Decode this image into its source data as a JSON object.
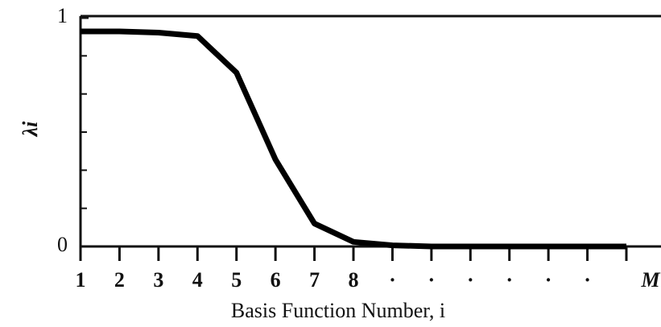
{
  "chart_data": {
    "type": "line",
    "x_label": "Basis Function Number, i",
    "y_label": "λi",
    "x": [
      1,
      2,
      3,
      4,
      5,
      6,
      7,
      8,
      9,
      10,
      11,
      12,
      13,
      14,
      15
    ],
    "series": [
      {
        "name": "λi",
        "color": "#000000",
        "values": [
          0.94,
          0.94,
          0.935,
          0.92,
          0.76,
          0.38,
          0.1,
          0.02,
          0.005,
          0,
          0,
          0,
          0,
          0,
          0
        ]
      }
    ],
    "xlim": [
      1,
      15
    ],
    "ylim": [
      0,
      1
    ],
    "xticks": [
      1,
      2,
      3,
      4,
      5,
      6,
      7,
      8,
      {
        "value": 9,
        "label": "·"
      },
      {
        "value": 10,
        "label": "·"
      },
      {
        "value": 11,
        "label": "·"
      },
      {
        "value": 12,
        "label": "·"
      },
      {
        "value": 13,
        "label": "·"
      },
      {
        "value": 14,
        "label": "·"
      },
      {
        "value": 15,
        "label": "M"
      }
    ],
    "yticks": [
      0,
      1
    ],
    "yminorticks": [
      0.1667,
      0.3333,
      0.5,
      0.6667,
      0.8333
    ]
  }
}
